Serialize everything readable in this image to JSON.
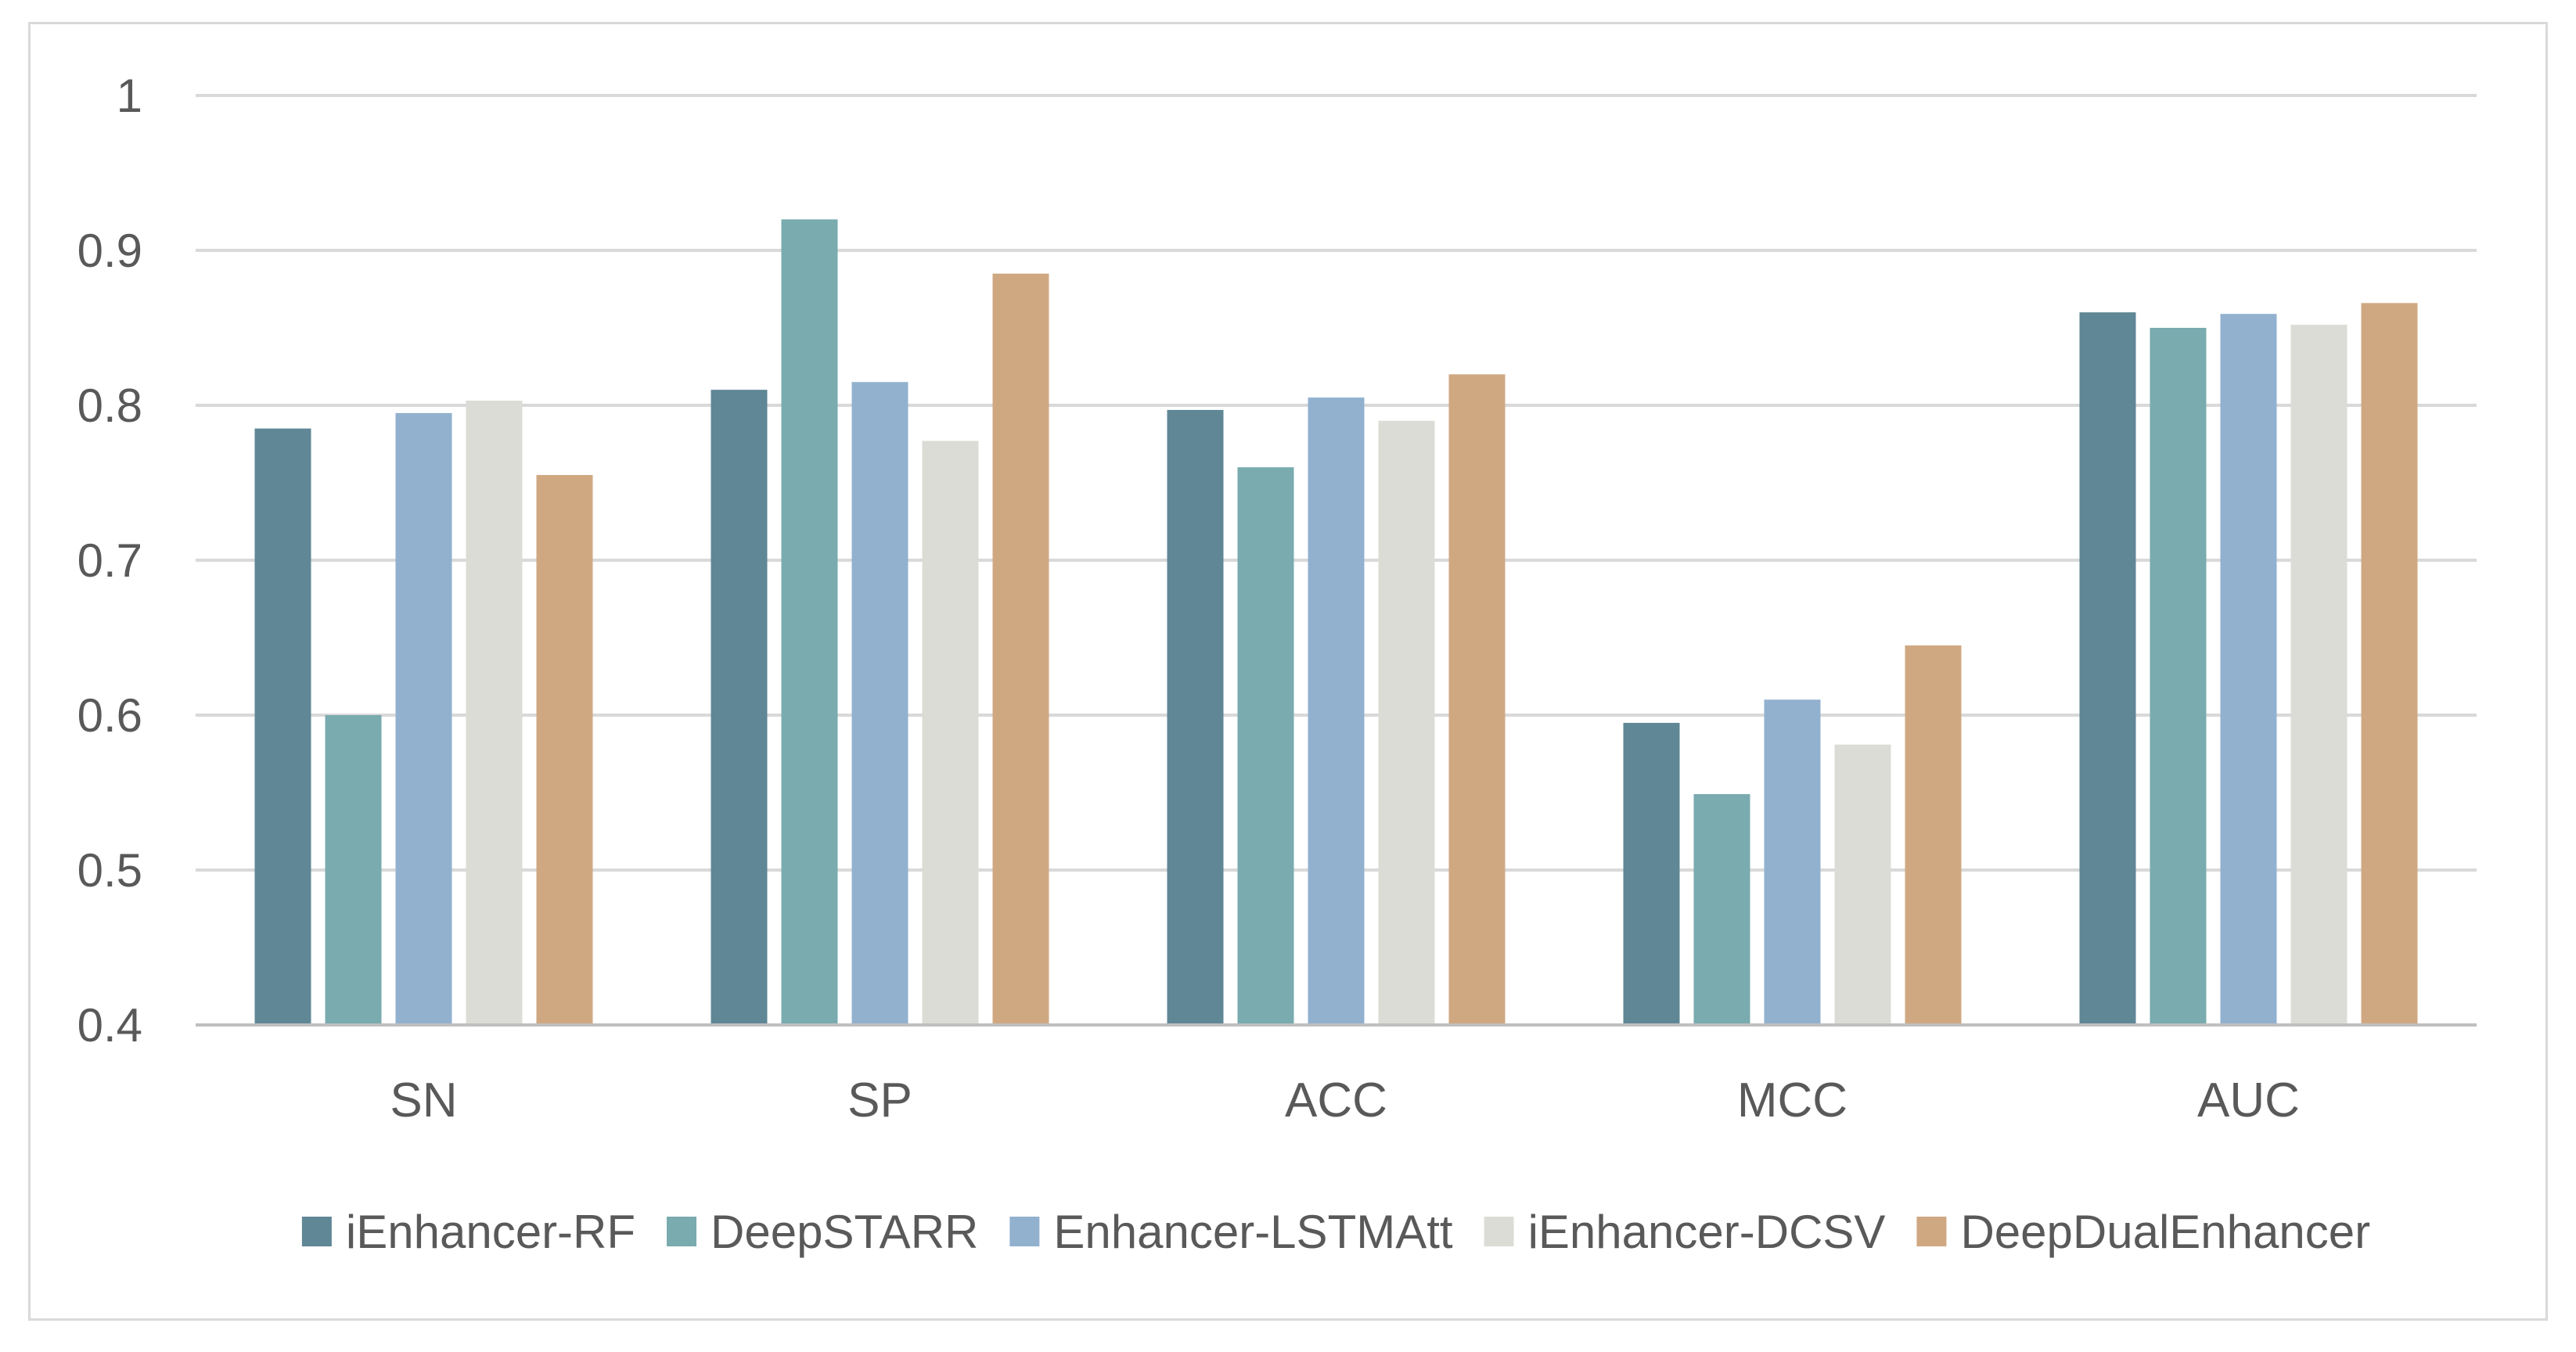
{
  "chart_data": {
    "type": "bar",
    "title": "",
    "xlabel": "",
    "ylabel": "",
    "ylim": [
      0.4,
      1.0
    ],
    "yticks": [
      "0.4",
      "0.5",
      "0.6",
      "0.7",
      "0.8",
      "0.9",
      "1"
    ],
    "grid": true,
    "legend_position": "bottom",
    "categories": [
      "SN",
      "SP",
      "ACC",
      "MCC",
      "AUC"
    ],
    "series": [
      {
        "name": "iEnhancer-RF",
        "color": "#5f8796",
        "values": [
          0.785,
          0.81,
          0.797,
          0.595,
          0.86
        ]
      },
      {
        "name": "DeepSTARR",
        "color": "#79abaf",
        "values": [
          0.6,
          0.92,
          0.76,
          0.549,
          0.85
        ]
      },
      {
        "name": "Enhancer-LSTMAtt",
        "color": "#92b1cf",
        "values": [
          0.795,
          0.815,
          0.805,
          0.61,
          0.859
        ]
      },
      {
        "name": "iEnhancer-DCSV",
        "color": "#dcdcd6",
        "values": [
          0.803,
          0.777,
          0.79,
          0.581,
          0.852
        ]
      },
      {
        "name": "DeepDualEnhancer",
        "color": "#cfa882",
        "values": [
          0.755,
          0.885,
          0.82,
          0.645,
          0.866
        ]
      }
    ]
  }
}
